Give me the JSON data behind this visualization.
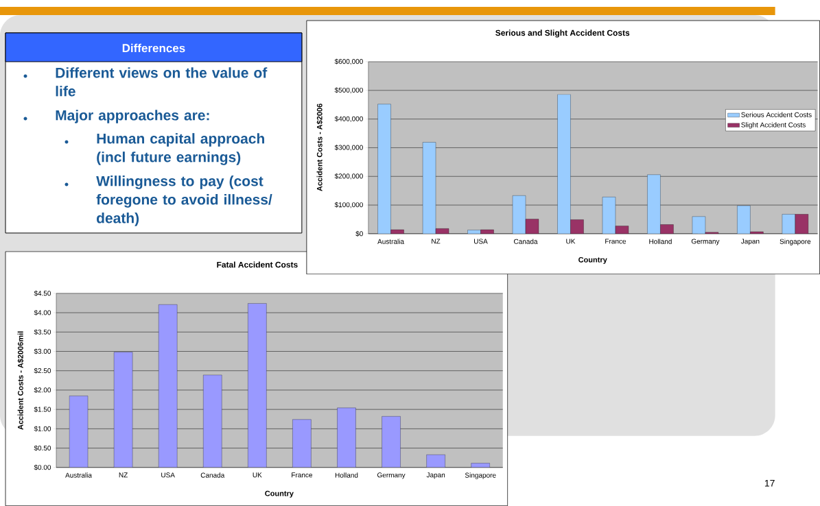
{
  "chart_data": [
    {
      "type": "other",
      "title": "Differences",
      "annotations": [
        "Different views on the value of life",
        "Major approaches are:",
        "Human capital approach (incl future earnings)",
        "Willingness to pay (cost foregone to avoid illness/ death)"
      ]
    },
    {
      "type": "bar",
      "title": "Serious and Slight Accident Costs",
      "xlabel": "Country",
      "ylabel": "Accident Costs - A$2006",
      "categories": [
        "Australia",
        "NZ",
        "USA",
        "Canada",
        "UK",
        "France",
        "Holland",
        "Germany",
        "Japan",
        "Singapore"
      ],
      "series": [
        {
          "name": "Serious Accident Costs",
          "color": "#99ccff",
          "values": [
            452000,
            319000,
            13000,
            133000,
            486000,
            128000,
            206000,
            60000,
            98000,
            68000
          ]
        },
        {
          "name": "Slight Accident Costs",
          "color": "#993366",
          "values": [
            14000,
            18000,
            14000,
            51000,
            49000,
            27000,
            32000,
            5000,
            7000,
            68000
          ]
        }
      ],
      "ylim": [
        0,
        600000
      ],
      "yticks": [
        {
          "value": 0,
          "label": "$0"
        },
        {
          "value": 100000,
          "label": "$100,000"
        },
        {
          "value": 200000,
          "label": "$200,000"
        },
        {
          "value": 300000,
          "label": "$300,000"
        },
        {
          "value": 400000,
          "label": "$400,000"
        },
        {
          "value": 500000,
          "label": "$500,000"
        },
        {
          "value": 600000,
          "label": "$600,000"
        }
      ],
      "grid": "y",
      "legend": "right"
    },
    {
      "type": "bar",
      "title": "Fatal Accident Costs",
      "xlabel": "Country",
      "ylabel": "Accident Costs - A$2006mil",
      "categories": [
        "Australia",
        "NZ",
        "USA",
        "Canada",
        "UK",
        "France",
        "Holland",
        "Germany",
        "Japan",
        "Singapore"
      ],
      "values": [
        1.85,
        2.98,
        4.21,
        2.39,
        4.24,
        1.24,
        1.54,
        1.32,
        0.33,
        0.11
      ],
      "color": "#9999ff",
      "ylim": [
        0,
        4.5
      ],
      "yticks": [
        {
          "value": 0,
          "label": "$0.00"
        },
        {
          "value": 0.5,
          "label": "$0.50"
        },
        {
          "value": 1,
          "label": "$1.00"
        },
        {
          "value": 1.5,
          "label": "$1.50"
        },
        {
          "value": 2,
          "label": "$2.00"
        },
        {
          "value": 2.5,
          "label": "$2.50"
        },
        {
          "value": 3,
          "label": "$3.00"
        },
        {
          "value": 3.5,
          "label": "$3.50"
        },
        {
          "value": 4,
          "label": "$4.00"
        },
        {
          "value": 4.5,
          "label": "$4.50"
        }
      ],
      "grid": "y",
      "annotations": [
        "17"
      ]
    }
  ]
}
